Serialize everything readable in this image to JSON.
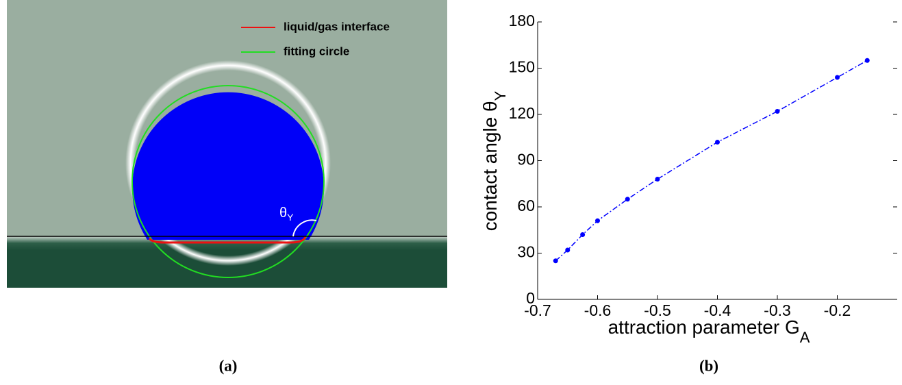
{
  "panel_a": {
    "legend": [
      "liquid/gas interface",
      "fitting circle"
    ],
    "angle_label": {
      "text": "θ",
      "sub": "Y"
    },
    "caption": "(a)"
  },
  "chart_data": {
    "type": "line",
    "caption": "(b)",
    "xlabel": {
      "text": "attraction parameter G",
      "sub": "A"
    },
    "ylabel": {
      "text": "contact angle θ",
      "sub": "Y"
    },
    "x": [
      -0.67,
      -0.65,
      -0.625,
      -0.6,
      -0.55,
      -0.5,
      -0.4,
      -0.3,
      -0.2,
      -0.15
    ],
    "series": [
      {
        "color": "#0000ff",
        "values": [
          25,
          32,
          42,
          51,
          65,
          78,
          102,
          122,
          144,
          155
        ]
      }
    ],
    "xlim": [
      -0.7,
      -0.1
    ],
    "ylim": [
      0,
      180
    ],
    "xticks": [
      -0.7,
      -0.6,
      -0.5,
      -0.4,
      -0.3,
      -0.2
    ],
    "yticks": [
      0,
      30,
      60,
      90,
      120,
      150,
      180
    ]
  }
}
